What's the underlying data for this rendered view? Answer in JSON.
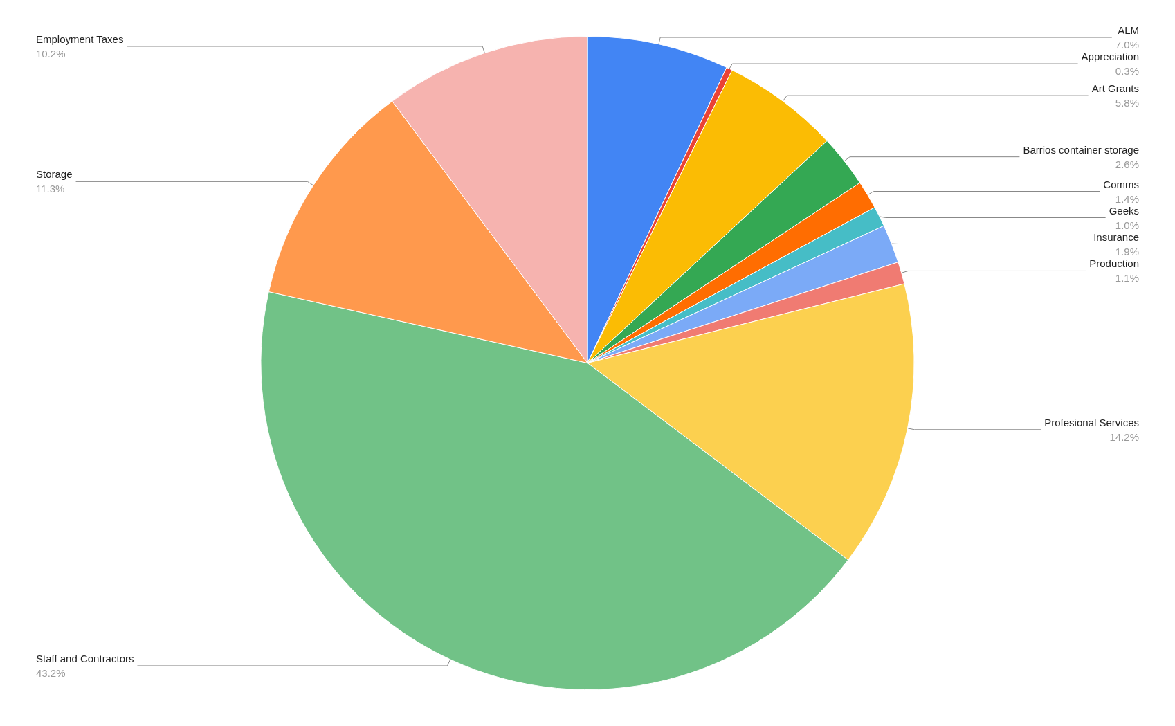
{
  "chart_data": {
    "type": "pie",
    "categories": [
      "ALM",
      "Appreciation",
      "Art Grants",
      "Barrios container storage",
      "Comms",
      "Geeks",
      "Insurance",
      "Production",
      "Profesional Services",
      "Staff and Contractors",
      "Storage",
      "Employment Taxes"
    ],
    "values": [
      7.0,
      0.3,
      5.8,
      2.6,
      1.4,
      1.0,
      1.9,
      1.1,
      14.2,
      43.2,
      11.3,
      10.2
    ],
    "value_labels": [
      "7.0%",
      "0.3%",
      "5.8%",
      "2.6%",
      "1.4%",
      "1.0%",
      "1.9%",
      "1.1%",
      "14.2%",
      "43.2%",
      "11.3%",
      "10.2%"
    ],
    "colors": [
      "#4285f4",
      "#ea4335",
      "#fbbc04",
      "#34a853",
      "#ff6d01",
      "#46bdc6",
      "#7baaf7",
      "#f07b72",
      "#fcd04f",
      "#71c287",
      "#ff994d",
      "#f6b3af"
    ],
    "legend": false
  }
}
